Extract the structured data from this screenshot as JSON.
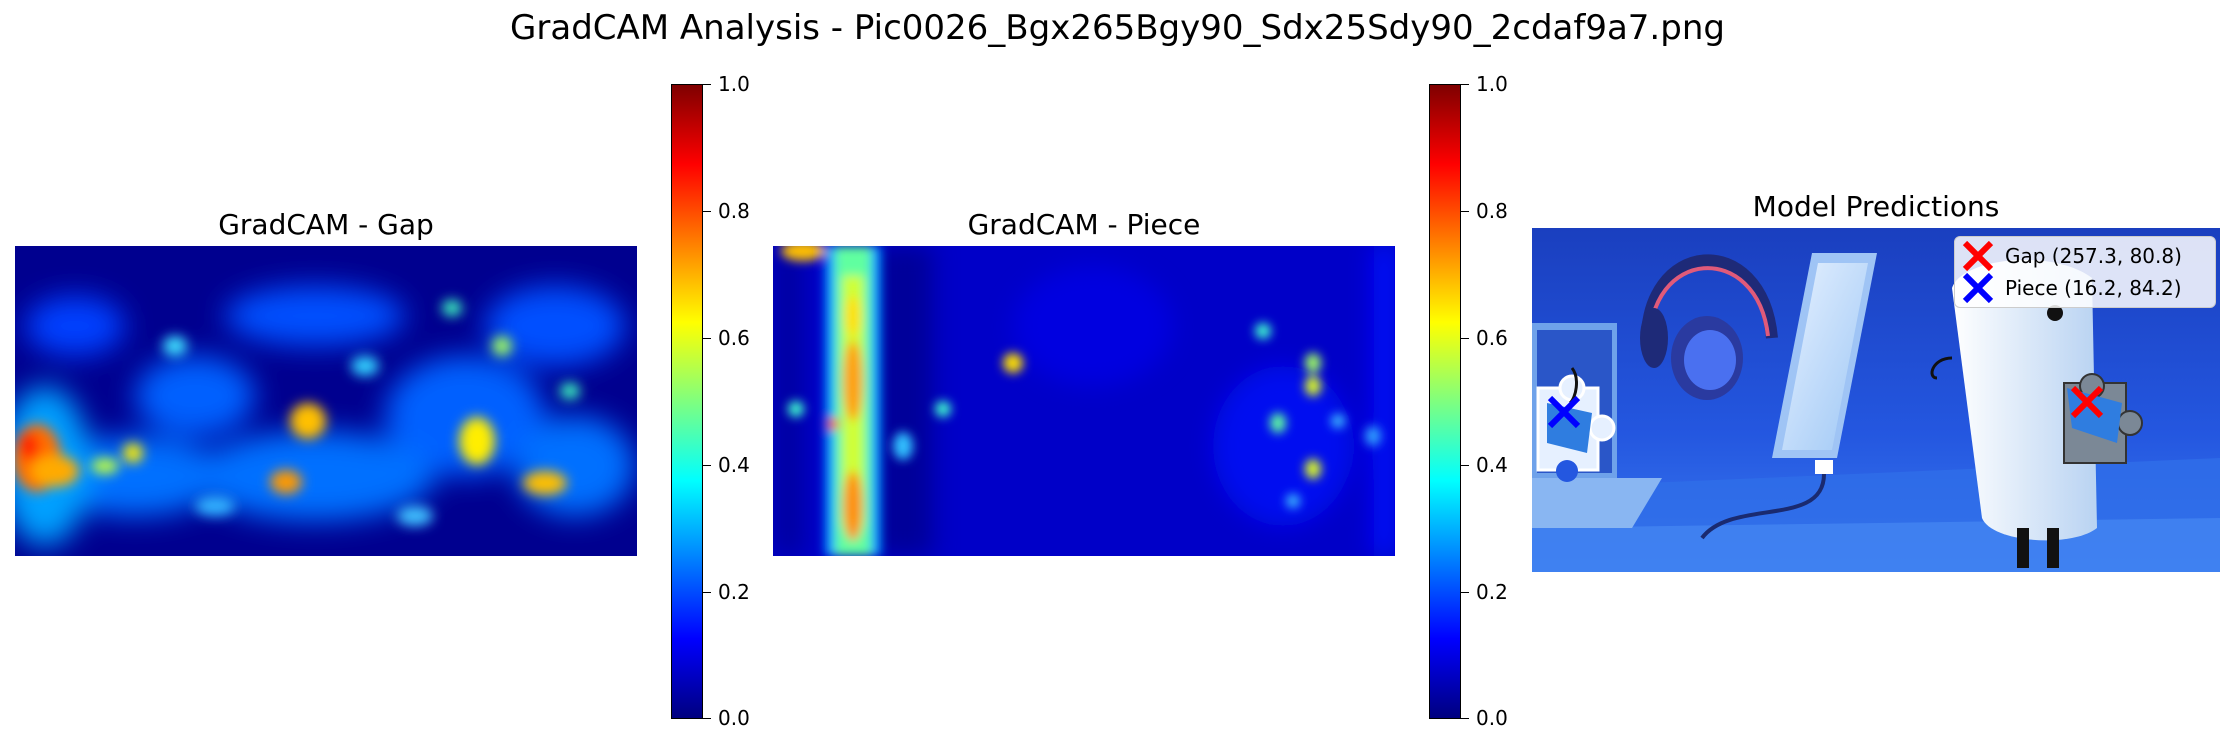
{
  "suptitle": "GradCAM Analysis - Pic0026_Bgx265Bgy90_Sdx25Sdy90_2cdaf9a7.png",
  "chart_data": [
    {
      "type": "heatmap",
      "title": "GradCAM - Gap",
      "colormap": "jet",
      "colorbar": {
        "min": 0.0,
        "max": 1.0,
        "ticks": [
          "0.0",
          "0.2",
          "0.4",
          "0.6",
          "0.8",
          "1.0"
        ]
      },
      "grid": false,
      "axes": "off"
    },
    {
      "type": "heatmap",
      "title": "GradCAM - Piece",
      "colormap": "jet",
      "colorbar": {
        "min": 0.0,
        "max": 1.0,
        "ticks": [
          "0.0",
          "0.2",
          "0.4",
          "0.6",
          "0.8",
          "1.0"
        ]
      },
      "grid": false,
      "axes": "off"
    },
    {
      "type": "scatter",
      "title": "Model Predictions",
      "axes": "off",
      "legend_placement": "top-right",
      "series": [
        {
          "name": "Gap (257.3, 80.8)",
          "marker": "x",
          "color": "#ff0000",
          "x": [
            257.3
          ],
          "y": [
            80.8
          ]
        },
        {
          "name": "Piece (16.2, 84.2)",
          "marker": "x",
          "color": "#0000ff",
          "x": [
            16.2
          ],
          "y": [
            84.2
          ]
        }
      ]
    }
  ]
}
